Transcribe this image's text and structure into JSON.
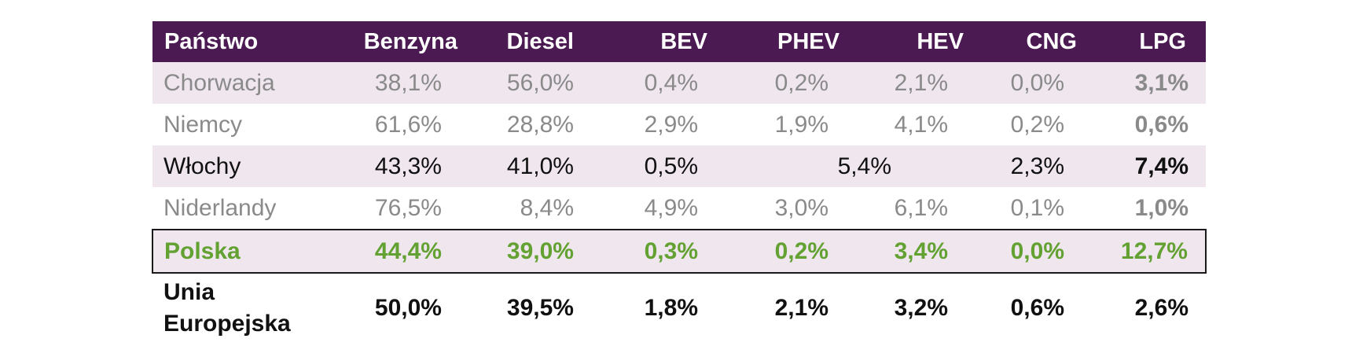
{
  "table": {
    "headers": [
      "Państwo",
      "Benzyna",
      "Diesel",
      "BEV",
      "PHEV",
      "HEV",
      "CNG",
      "LPG"
    ],
    "rows": [
      {
        "country": "Chorwacja",
        "benzyna": "38,1%",
        "diesel": "56,0%",
        "bev": "0,4%",
        "phev": "0,2%",
        "hev": "2,1%",
        "cng": "0,0%",
        "lpg": "3,1%"
      },
      {
        "country": "Niemcy",
        "benzyna": "61,6%",
        "diesel": "28,8%",
        "bev": "2,9%",
        "phev": "1,9%",
        "hev": "4,1%",
        "cng": "0,2%",
        "lpg": "0,6%"
      },
      {
        "country": "Włochy",
        "benzyna": "43,3%",
        "diesel": "41,0%",
        "bev": "0,5%",
        "phev_hev": "5,4%",
        "cng": "2,3%",
        "lpg": "7,4%"
      },
      {
        "country": "Niderlandy",
        "benzyna": "76,5%",
        "diesel": "8,4%",
        "bev": "4,9%",
        "phev": "3,0%",
        "hev": "6,1%",
        "cng": "0,1%",
        "lpg": "1,0%"
      },
      {
        "country": "Polska",
        "benzyna": "44,4%",
        "diesel": "39,0%",
        "bev": "0,3%",
        "phev": "0,2%",
        "hev": "3,4%",
        "cng": "0,0%",
        "lpg": "12,7%"
      },
      {
        "country": "Unia Europejska",
        "benzyna": "50,0%",
        "diesel": "39,5%",
        "bev": "1,8%",
        "phev": "2,1%",
        "hev": "3,2%",
        "cng": "0,6%",
        "lpg": "2,6%"
      }
    ]
  },
  "colors": {
    "header_bg": "#4b1a52",
    "header_text": "#ffffff",
    "band_bg": "#efe6ee",
    "muted_text": "#8a8a8a",
    "highlight_text": "#63a232"
  }
}
